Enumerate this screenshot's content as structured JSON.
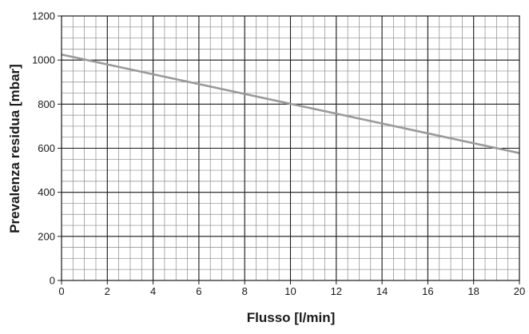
{
  "chart_data": {
    "type": "line",
    "xlabel": "Flusso [l/min]",
    "ylabel": "Prevalenza residua [mbar]",
    "xlim": [
      0,
      20
    ],
    "ylim": [
      0,
      1200
    ],
    "x_ticks": [
      "0",
      "2",
      "4",
      "6",
      "8",
      "10",
      "12",
      "14",
      "16",
      "18",
      "20"
    ],
    "y_ticks": [
      "0",
      "200",
      "400",
      "600",
      "800",
      "1000",
      "1200"
    ],
    "grid": true,
    "series": [
      {
        "x": [
          0,
          20
        ],
        "y": [
          1025,
          578
        ],
        "color": "#9a9a9a"
      }
    ]
  }
}
